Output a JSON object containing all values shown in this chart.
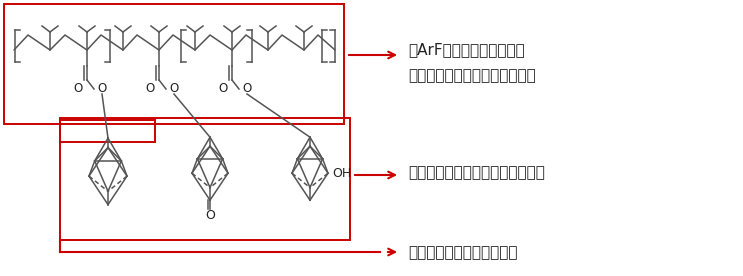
{
  "bg_color": "#ffffff",
  "red_color": "#cc0000",
  "dark_color": "#222222",
  "line_color": "#555555",
  "text1_line1": "・ArF光源に対する透明性",
  "text1_line2": "・脱保護後は現像液への溶解性",
  "text2": "・エッチング耐性（脂環式構造）",
  "text3": "・酸による分解を促進する",
  "fontsize_main": 11
}
